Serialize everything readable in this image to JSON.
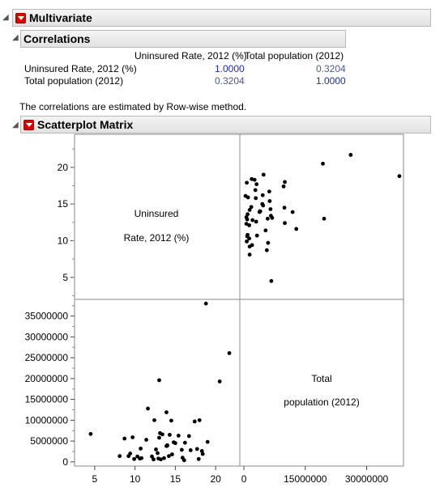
{
  "multivariate": {
    "title": "Multivariate"
  },
  "correlations": {
    "title": "Correlations",
    "columns": [
      "Uninsured Rate, 2012 (%)",
      "Total population (2012)"
    ],
    "rows": [
      {
        "label": "Uninsured Rate, 2012 (%)",
        "values": [
          "1.0000",
          "0.3204"
        ]
      },
      {
        "label": "Total population (2012)",
        "values": [
          "0.3204",
          "1.0000"
        ]
      }
    ],
    "note": "The correlations are estimated by Row-wise method."
  },
  "scatterplot": {
    "title": "Scatterplot Matrix",
    "diag1_line1": "Uninsured",
    "diag1_line2": "Rate, 2012 (%)",
    "diag2_line1": "Total",
    "diag2_line2": "population (2012)",
    "y_top_ticks": [
      "20",
      "15",
      "10",
      "5"
    ],
    "y_bottom_ticks": [
      "35000000",
      "30000000",
      "25000000",
      "20000000",
      "15000000",
      "10000000",
      "5000000",
      "0"
    ],
    "x_left_ticks": [
      "5",
      "10",
      "15",
      "20"
    ],
    "x_right_ticks": [
      "0",
      "15000000",
      "30000000"
    ]
  },
  "chart_data": {
    "type": "scatter",
    "series_vars": [
      "Uninsured Rate, 2012 (%)",
      "Total population (2012)"
    ],
    "x_uninsured_range": [
      2.5,
      23
    ],
    "y_uninsured_range": [
      2,
      24.5
    ],
    "population_range": [
      -1000000,
      39000000
    ],
    "points": [
      [
        21.7,
        26100000
      ],
      [
        8.7,
        5600000
      ],
      [
        9.2,
        1400000
      ],
      [
        4.5,
        6700000
      ],
      [
        11.6,
        12800000
      ],
      [
        13.0,
        19600000
      ],
      [
        18.8,
        38000000
      ],
      [
        20.5,
        19300000
      ],
      [
        14.5,
        9900000
      ],
      [
        16.2,
        4600000
      ],
      [
        13.9,
        11900000
      ],
      [
        10.8,
        900000
      ],
      [
        17.4,
        9700000
      ],
      [
        13.1,
        6900000
      ],
      [
        12.4,
        10000000
      ],
      [
        14.3,
        6500000
      ],
      [
        15.8,
        2900000
      ],
      [
        12.3,
        600000
      ],
      [
        14.0,
        4000000
      ],
      [
        13.6,
        900000
      ],
      [
        13.4,
        6600000
      ],
      [
        12.6,
        3000000
      ],
      [
        9.7,
        5900000
      ],
      [
        14.2,
        1400000
      ],
      [
        13.9,
        3800000
      ],
      [
        16.1,
        400000
      ],
      [
        14.8,
        4700000
      ],
      [
        10.3,
        1300000
      ],
      [
        17.9,
        700000
      ],
      [
        8.1,
        1400000
      ],
      [
        16.9,
        2800000
      ],
      [
        12.1,
        1300000
      ],
      [
        18.3,
        2600000
      ],
      [
        10.7,
        3200000
      ],
      [
        18.0,
        10000000
      ],
      [
        15.0,
        4500000
      ],
      [
        13.2,
        600000
      ],
      [
        11.4,
        5300000
      ],
      [
        9.9,
        700000
      ],
      [
        14.6,
        1800000
      ],
      [
        19.0,
        4800000
      ],
      [
        15.4,
        6300000
      ],
      [
        13.0,
        5800000
      ],
      [
        12.8,
        2100000
      ],
      [
        17.7,
        3100000
      ],
      [
        16.7,
        6200000
      ],
      [
        14.0,
        3900000
      ],
      [
        15.9,
        1000000
      ],
      [
        18.4,
        1900000
      ],
      [
        10.6,
        800000
      ],
      [
        12.9,
        800000
      ],
      [
        9.4,
        2000000
      ]
    ]
  }
}
